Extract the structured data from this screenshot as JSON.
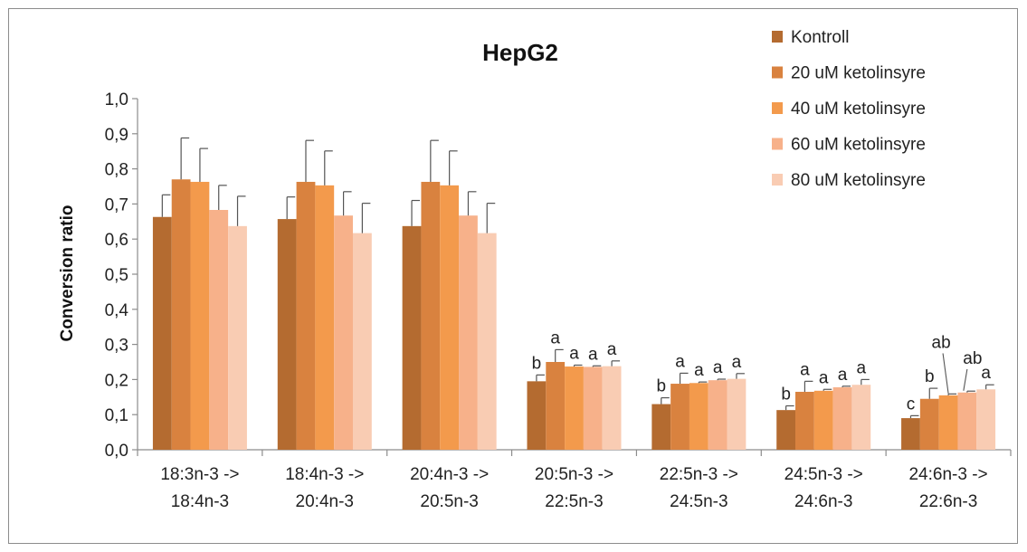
{
  "chart_data": {
    "type": "bar",
    "title": "HepG2",
    "ylabel": "Conversion ratio",
    "ylim": [
      0,
      1.0
    ],
    "yticks": [
      "0,0",
      "0,1",
      "0,2",
      "0,3",
      "0,4",
      "0,5",
      "0,6",
      "0,7",
      "0,8",
      "0,9",
      "1,0"
    ],
    "categories": [
      [
        "18:3n-3 ->",
        "18:4n-3"
      ],
      [
        "18:4n-3 ->",
        "20:4n-3"
      ],
      [
        "20:4n-3 ->",
        "20:5n-3"
      ],
      [
        "20:5n-3 ->",
        "22:5n-3"
      ],
      [
        "22:5n-3 ->",
        "24:5n-3"
      ],
      [
        "24:5n-3 ->",
        "24:6n-3"
      ],
      [
        "24:6n-3 ->",
        "22:6n-3"
      ]
    ],
    "legend_position": "top-right",
    "series": [
      {
        "name": "Kontroll",
        "color": "#b46b30",
        "values": [
          0.663,
          0.657,
          0.637,
          0.195,
          0.13,
          0.113,
          0.09
        ],
        "errors": [
          0.063,
          0.063,
          0.073,
          0.018,
          0.018,
          0.012,
          0.007
        ],
        "sig": [
          "",
          "",
          "",
          "b",
          "b",
          "b",
          "c"
        ]
      },
      {
        "name": "20 uM ketolinsyre",
        "color": "#d9823f",
        "values": [
          0.77,
          0.763,
          0.763,
          0.25,
          0.188,
          0.165,
          0.145
        ],
        "errors": [
          0.118,
          0.118,
          0.118,
          0.035,
          0.03,
          0.03,
          0.03
        ],
        "sig": [
          "",
          "",
          "",
          "a",
          "a",
          "a",
          "b"
        ]
      },
      {
        "name": "40 uM ketolinsyre",
        "color": "#f39a4c",
        "values": [
          0.763,
          0.753,
          0.753,
          0.237,
          0.19,
          0.168,
          0.155
        ],
        "errors": [
          0.095,
          0.098,
          0.098,
          0.004,
          0.003,
          0.004,
          0.004
        ],
        "sig": [
          "",
          "",
          "",
          "a",
          "a",
          "a",
          "ab"
        ]
      },
      {
        "name": "60 uM ketolinsyre",
        "color": "#f7b18a",
        "values": [
          0.683,
          0.667,
          0.667,
          0.236,
          0.198,
          0.178,
          0.163
        ],
        "errors": [
          0.07,
          0.068,
          0.068,
          0.003,
          0.003,
          0.003,
          0.004
        ],
        "sig": [
          "",
          "",
          "",
          "a",
          "a",
          "a",
          "ab"
        ]
      },
      {
        "name": "80 uM ketolinsyre",
        "color": "#f9ccb3",
        "values": [
          0.637,
          0.617,
          0.617,
          0.238,
          0.202,
          0.185,
          0.172
        ],
        "errors": [
          0.085,
          0.085,
          0.085,
          0.015,
          0.015,
          0.015,
          0.013
        ],
        "sig": [
          "",
          "",
          "",
          "a",
          "a",
          "a",
          "a"
        ]
      }
    ]
  }
}
